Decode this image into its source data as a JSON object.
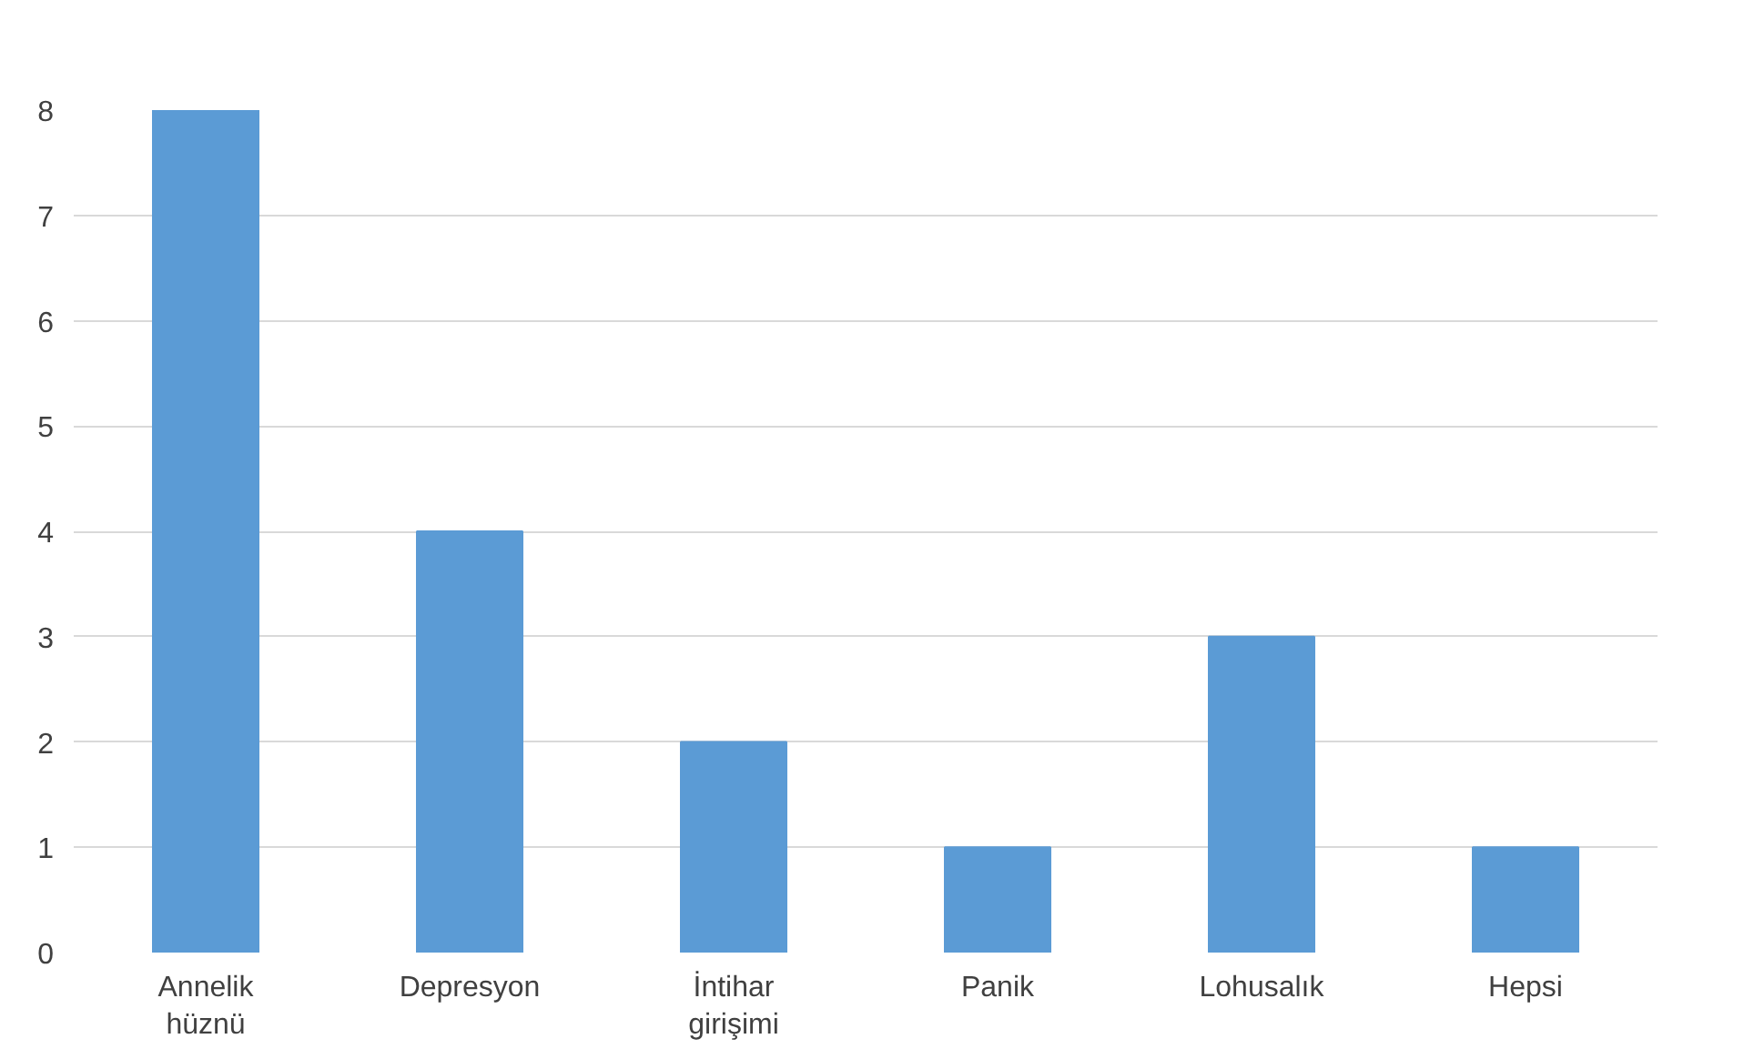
{
  "chart_data": {
    "type": "bar",
    "categories": [
      "Annelik hüznü",
      "Depresyon",
      "İntihar girişimi",
      "Panik",
      "Lohusalık",
      "Hepsi"
    ],
    "values": [
      8,
      4,
      2,
      1,
      3,
      1
    ],
    "color": "#5b9bd5",
    "ylim": [
      0,
      8
    ],
    "yticks": [
      0,
      1,
      2,
      3,
      4,
      5,
      6,
      7,
      8
    ],
    "grid": "y"
  }
}
